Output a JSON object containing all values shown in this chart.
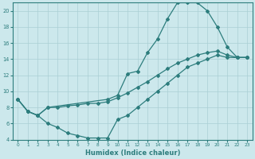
{
  "xlabel": "Humidex (Indice chaleur)",
  "bg_color": "#cce8ec",
  "line_color": "#2d7d7d",
  "grid_color": "#aacfd5",
  "xlim": [
    -0.5,
    23.5
  ],
  "ylim": [
    4,
    21
  ],
  "xticks": [
    0,
    1,
    2,
    3,
    4,
    5,
    6,
    7,
    8,
    9,
    10,
    11,
    12,
    13,
    14,
    15,
    16,
    17,
    18,
    19,
    20,
    21,
    22,
    23
  ],
  "yticks": [
    4,
    6,
    8,
    10,
    12,
    14,
    16,
    18,
    20
  ],
  "line1_x": [
    0,
    1,
    2,
    3,
    4,
    5,
    6,
    7,
    8,
    9,
    10,
    11,
    12,
    13,
    14,
    15,
    16,
    17,
    18,
    19,
    20,
    21,
    22,
    23
  ],
  "line1_y": [
    9.0,
    7.5,
    7.0,
    6.0,
    5.5,
    4.8,
    4.5,
    4.2,
    4.2,
    4.2,
    6.5,
    7.0,
    8.0,
    9.0,
    10.0,
    11.0,
    12.0,
    13.0,
    13.5,
    14.0,
    14.5,
    14.2,
    14.2,
    14.2
  ],
  "line2_x": [
    0,
    1,
    2,
    3,
    4,
    5,
    6,
    7,
    8,
    9,
    10,
    11,
    12,
    13,
    14,
    15,
    16,
    17,
    18,
    19,
    20,
    21,
    22,
    23
  ],
  "line2_y": [
    9.0,
    7.5,
    7.0,
    8.0,
    8.0,
    8.2,
    8.3,
    8.5,
    8.5,
    8.7,
    9.2,
    9.8,
    10.5,
    11.2,
    12.0,
    12.8,
    13.5,
    14.0,
    14.5,
    14.8,
    15.0,
    14.5,
    14.2,
    14.2
  ],
  "line3_x": [
    0,
    1,
    2,
    3,
    9,
    10,
    11,
    12,
    13,
    14,
    15,
    16,
    17,
    18,
    19,
    20,
    21,
    22,
    23
  ],
  "line3_y": [
    9.0,
    7.5,
    7.0,
    8.0,
    9.0,
    9.5,
    12.2,
    12.5,
    14.8,
    16.5,
    19.0,
    21.0,
    21.0,
    21.0,
    20.0,
    18.0,
    15.5,
    14.2,
    14.2
  ]
}
